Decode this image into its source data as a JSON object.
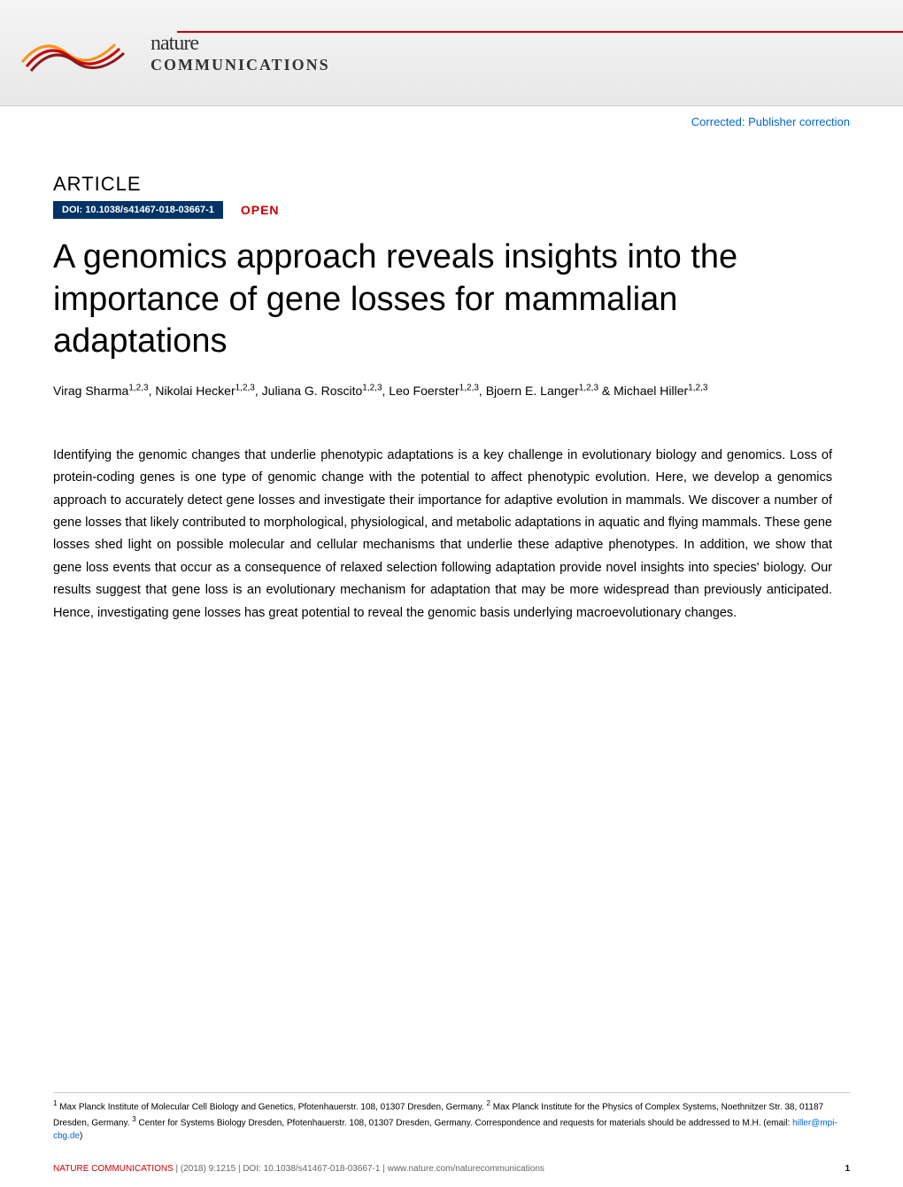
{
  "header": {
    "logo_name1": "nature",
    "logo_name2": "COMMUNICATIONS",
    "logo_colors": {
      "orange": "#f7941d",
      "red": "#cc0000",
      "dark_red": "#8b1a1a"
    }
  },
  "correction": {
    "text": "Corrected: Publisher correction",
    "color": "#0066cc"
  },
  "article": {
    "label": "ARTICLE",
    "doi_badge": "DOI: 10.1038/s41467-018-03667-1",
    "open_badge": "OPEN",
    "title": "A genomics approach reveals insights into the importance of gene losses for mammalian adaptations",
    "authors_html": "Virag Sharma<sup>1,2,3</sup>, Nikolai Hecker<sup>1,2,3</sup>, Juliana G. Roscito<sup>1,2,3</sup>, Leo Foerster<sup>1,2,3</sup>, Bjoern E. Langer<sup>1,2,3</sup> & Michael Hiller<sup>1,2,3</sup>",
    "abstract": "Identifying the genomic changes that underlie phenotypic adaptations is a key challenge in evolutionary biology and genomics. Loss of protein-coding genes is one type of genomic change with the potential to affect phenotypic evolution. Here, we develop a genomics approach to accurately detect gene losses and investigate their importance for adaptive evolution in mammals. We discover a number of gene losses that likely contributed to morphological, physiological, and metabolic adaptations in aquatic and flying mammals. These gene losses shed light on possible molecular and cellular mechanisms that underlie these adaptive phenotypes. In addition, we show that gene loss events that occur as a consequence of relaxed selection following adaptation provide novel insights into species' biology. Our results suggest that gene loss is an evolutionary mechanism for adaptation that may be more widespread than previously anticipated. Hence, investigating gene losses has great potential to reveal the genomic basis underlying macroevolutionary changes."
  },
  "affiliations": {
    "text_html": "<sup>1</sup> Max Planck Institute of Molecular Cell Biology and Genetics, Pfotenhauerstr. 108, 01307 Dresden, Germany. <sup>2</sup> Max Planck Institute for the Physics of Complex Systems, Noethnitzer Str. 38, 01187 Dresden, Germany. <sup>3</sup> Center for Systems Biology Dresden, Pfotenhauerstr. 108, 01307 Dresden, Germany. Correspondence and requests for materials should be addressed to M.H. (email: <a href='#'>hiller@mpi-cbg.de</a>)",
    "email": "hiller@mpi-cbg.de"
  },
  "footer": {
    "journal": "NATURE COMMUNICATIONS",
    "citation": "|    (2018) 9:1215    | DOI: 10.1038/s41467-018-03667-1 | www.nature.com/naturecommunications",
    "page_number": "1"
  },
  "styling": {
    "background_color": "#ffffff",
    "title_fontsize": 38,
    "title_fontweight": 300,
    "abstract_fontsize": 14.5,
    "abstract_lineheight": 1.75,
    "doi_badge_bg": "#003366",
    "doi_badge_color": "#ffffff",
    "open_badge_color": "#cc0000",
    "link_color": "#0066cc",
    "banner_gradient_start": "#f5f5f5",
    "banner_gradient_end": "#e8e8e8",
    "footer_border_color": "#cccccc"
  }
}
